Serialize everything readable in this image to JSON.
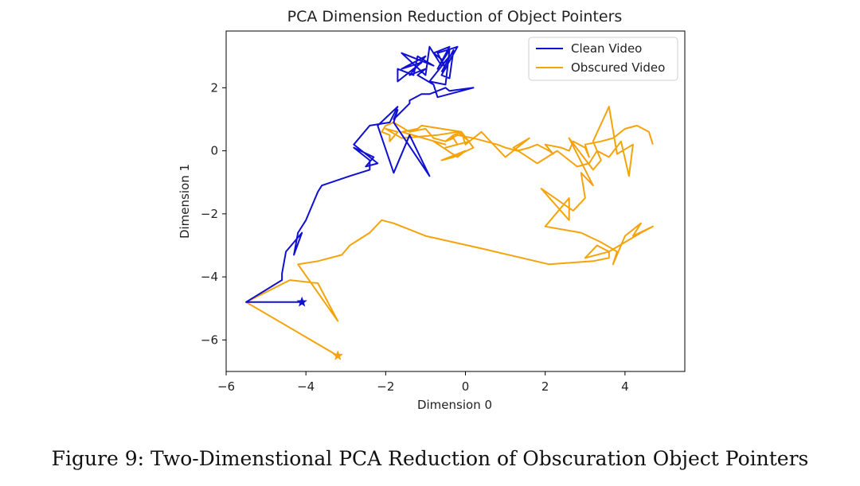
{
  "chart_data": {
    "type": "line",
    "title": "PCA Dimension Reduction of Object Pointers",
    "xlabel": "Dimension 0",
    "ylabel": "Dimension 1",
    "xlim": [
      -6,
      5.5
    ],
    "ylim": [
      -7,
      3.8
    ],
    "xticks": [
      -6,
      -4,
      -2,
      0,
      2,
      4
    ],
    "yticks": [
      -6,
      -4,
      -2,
      0,
      2
    ],
    "xtick_labels": [
      "−6",
      "−4",
      "−2",
      "0",
      "2",
      "4"
    ],
    "ytick_labels": [
      "−6",
      "−4",
      "−2",
      "0",
      "2"
    ],
    "legend_position": "top-right",
    "series": [
      {
        "name": "Clean Video",
        "color": "#1010d0",
        "end_marker": "star",
        "x": [
          -4.1,
          -5.5,
          -4.6,
          -4.6,
          -4.5,
          -4.1,
          -4.3,
          -4.2,
          -4.0,
          -3.7,
          -3.6,
          -2.9,
          -2.4,
          -2.4,
          -2.8,
          -2.3,
          -2.5,
          -2.2,
          -2.8,
          -2.4,
          -1.9,
          -1.7,
          -2.2,
          -1.8,
          -1.4,
          -0.9,
          -1.8,
          -1.7,
          -1.8,
          -1.4,
          -1.4,
          -1.1,
          -0.9,
          -0.7,
          -0.5,
          -0.4,
          0.2,
          -0.7,
          -0.8,
          -1.2,
          -1.0,
          -1.4,
          -1.0,
          -1.6,
          -1.1,
          -1.7,
          -1.7,
          -1.3,
          -1.2,
          -0.8,
          -1.6,
          -1.0,
          -0.9,
          -0.6,
          -0.4,
          -0.9,
          -0.5,
          -0.4,
          -0.7,
          -0.4,
          -0.8,
          -0.6,
          -0.5,
          -0.7,
          -0.2,
          -0.6,
          -0.4,
          -0.3,
          -0.6
        ],
        "y": [
          -4.8,
          -4.8,
          -4.1,
          -3.9,
          -3.2,
          -2.6,
          -3.3,
          -2.6,
          -2.2,
          -1.3,
          -1.1,
          -0.8,
          -0.6,
          -0.3,
          0.1,
          -0.2,
          -0.5,
          -0.4,
          0.2,
          0.8,
          0.9,
          1.4,
          0.8,
          -0.7,
          0.5,
          -0.8,
          0.9,
          1.3,
          1.0,
          1.5,
          1.6,
          1.8,
          1.8,
          1.9,
          2.0,
          1.9,
          2.0,
          1.7,
          2.1,
          2.4,
          2.6,
          2.4,
          3.0,
          2.6,
          2.8,
          2.2,
          2.6,
          2.4,
          3.0,
          2.7,
          3.1,
          2.4,
          3.3,
          2.7,
          3.0,
          2.2,
          2.1,
          3.2,
          2.6,
          3.3,
          3.1,
          2.9,
          2.6,
          3.1,
          3.3,
          2.4,
          2.3,
          3.2,
          2.5
        ]
      },
      {
        "name": "Obscured Video",
        "color": "#f5a30a",
        "end_marker": "star",
        "x": [
          -3.2,
          -5.5,
          -4.4,
          -3.7,
          -3.2,
          -4.2,
          -3.7,
          -3.1,
          -2.9,
          -2.4,
          -2.1,
          -1.8,
          -1.0,
          0.4,
          2.1,
          3.2,
          3.6,
          3.6,
          3.0,
          3.3,
          3.6,
          4.4,
          4.7,
          4.2,
          4.4,
          4.0,
          3.7,
          3.8,
          3.4,
          2.9,
          2.0,
          2.6,
          2.6,
          1.9,
          2.7,
          3.0,
          2.9,
          3.2,
          2.6,
          3.2,
          3.4,
          3.2,
          3.6,
          3.8,
          4.2,
          4.1,
          3.9,
          3.6,
          3.3,
          3.1,
          2.8,
          2.3,
          1.8,
          1.2,
          1.6,
          1.0,
          0.4,
          0.1,
          0.0,
          -0.1,
          0.2,
          -0.3,
          -0.6,
          0.0,
          -0.2,
          -0.8,
          -0.5,
          -1.6,
          -1.2,
          -1.1,
          -0.1,
          -0.3,
          -0.5,
          -0.8,
          -1.0,
          -1.4,
          -1.8,
          -2.0,
          -2.1,
          -1.9,
          -1.9,
          -1.7,
          -2.0,
          -1.6,
          -0.7,
          -0.2,
          0.1,
          -0.5,
          -0.2,
          -0.3,
          -0.5,
          -0.2,
          0.2,
          0.5,
          0.8,
          1.0,
          1.3,
          1.6,
          1.8,
          2.1,
          2.2,
          2.0,
          2.4,
          2.6,
          2.7,
          3.0,
          3.1,
          3.0,
          3.4,
          3.7,
          3.8,
          4.0,
          4.3,
          4.6,
          4.7
        ],
        "y": [
          -6.5,
          -4.8,
          -4.1,
          -4.2,
          -5.4,
          -3.6,
          -3.5,
          -3.3,
          -3.0,
          -2.6,
          -2.2,
          -2.3,
          -2.7,
          -3.1,
          -3.6,
          -3.5,
          -3.4,
          -3.2,
          -3.4,
          -3.0,
          -3.2,
          -2.6,
          -2.4,
          -2.7,
          -2.3,
          -2.7,
          -3.6,
          -3.2,
          -2.9,
          -2.6,
          -2.4,
          -1.5,
          -2.2,
          -1.2,
          -1.9,
          -1.5,
          -0.7,
          -1.1,
          0.4,
          -0.6,
          -0.3,
          0.3,
          1.4,
          -0.1,
          0.2,
          -0.8,
          0.3,
          -0.2,
          0.0,
          -0.4,
          -0.5,
          0.0,
          -0.4,
          0.1,
          0.4,
          -0.2,
          0.6,
          0.3,
          0.2,
          0.6,
          0.1,
          -0.2,
          -0.3,
          0.0,
          -0.2,
          0.3,
          0.2,
          0.6,
          0.7,
          0.8,
          0.6,
          0.5,
          0.3,
          0.4,
          0.7,
          0.6,
          0.9,
          0.8,
          0.6,
          0.5,
          0.3,
          0.6,
          0.7,
          0.4,
          0.5,
          0.6,
          0.3,
          0.1,
          0.2,
          0.4,
          0.3,
          0.5,
          0.4,
          0.3,
          0.2,
          0.1,
          0.0,
          0.1,
          0.2,
          0.0,
          -0.1,
          0.2,
          0.1,
          0.0,
          0.3,
          0.1,
          -0.2,
          0.2,
          0.3,
          0.4,
          0.5,
          0.7,
          0.8,
          0.6,
          0.2
        ]
      }
    ]
  },
  "caption": "Figure 9: Two-Dimenstional PCA Reduction of Obscuration Object Pointers"
}
